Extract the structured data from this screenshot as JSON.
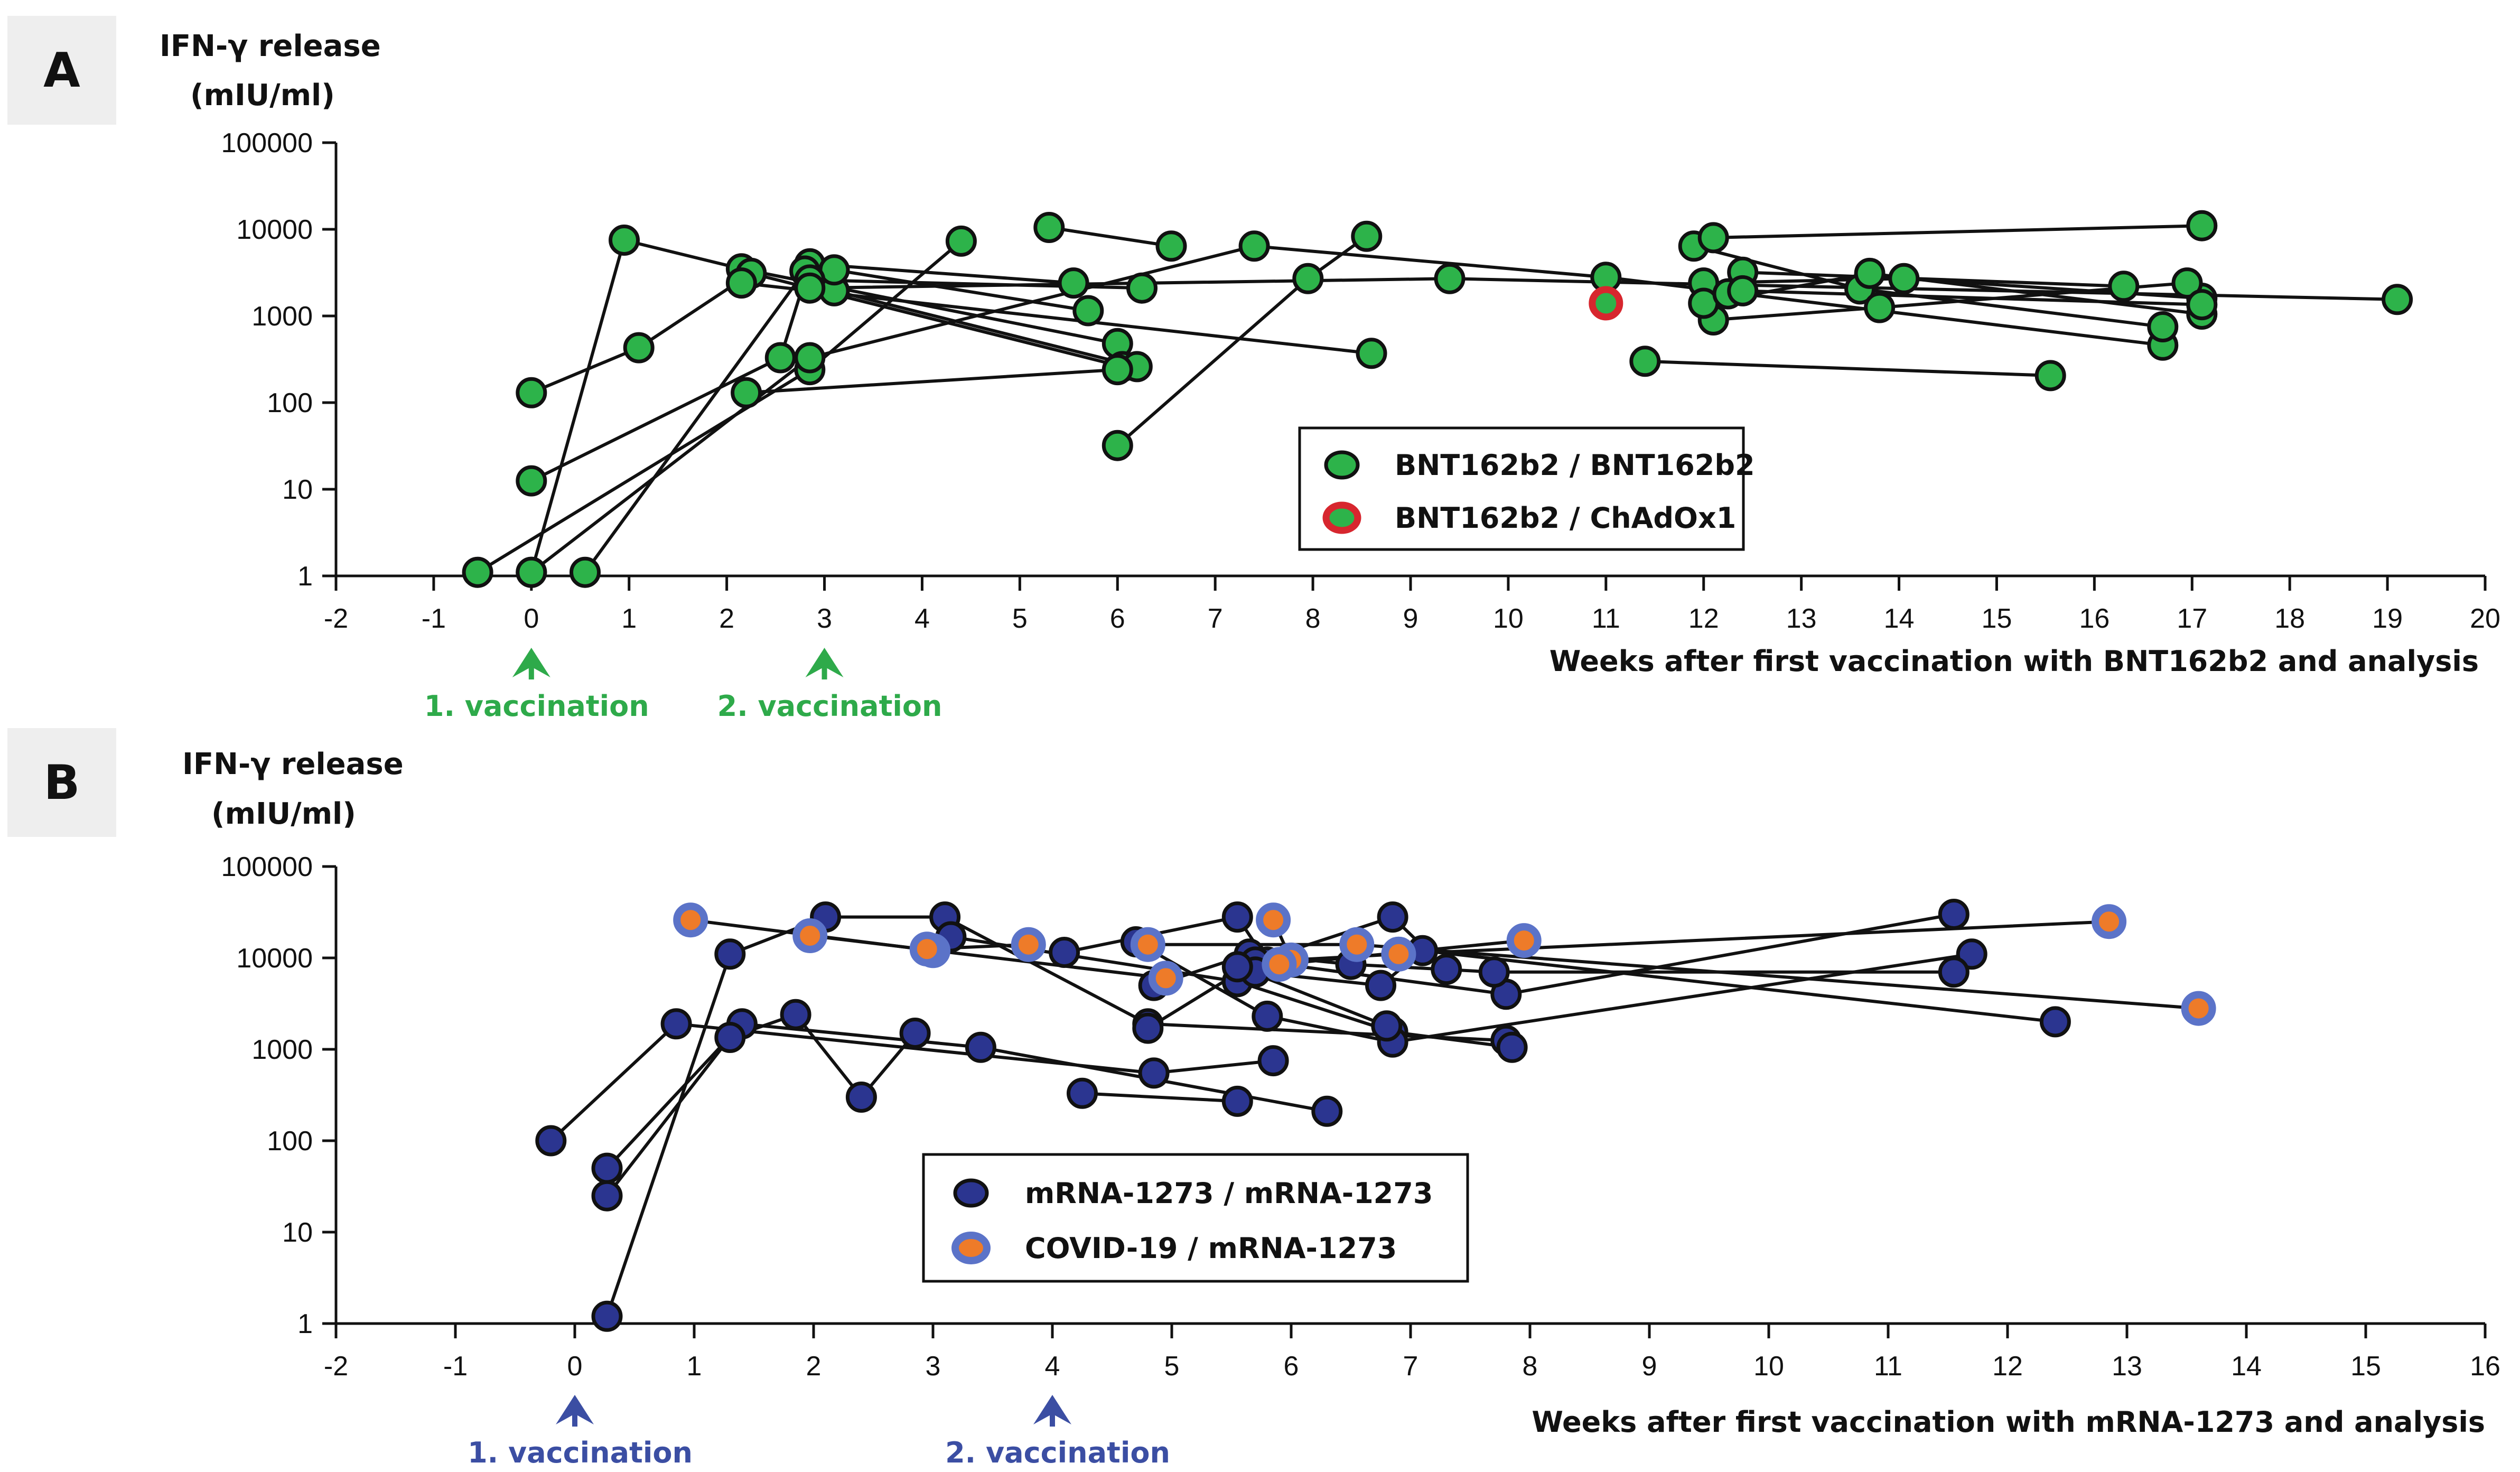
{
  "colors": {
    "green_fill": "#2db34a",
    "red_ring": "#d7262e",
    "navy_fill": "#2b3590",
    "orange_fill": "#ee7b29",
    "blue_ring": "#5b73c8",
    "green_text": "#2eaa4a",
    "blue_text": "#3b4ea3",
    "line": "#111111"
  },
  "chart_data": [
    {
      "panel": "A",
      "type": "line",
      "ylabel_line1": "IFN-γ release",
      "ylabel_line2": "(mIU/ml)",
      "xlabel": "Weeks after first vaccination with BNT162b2 and analysis",
      "yscale": "log",
      "ylim": [
        1,
        100000
      ],
      "yticks": [
        1,
        10,
        100,
        1000,
        10000,
        100000
      ],
      "ytick_labels": [
        "1",
        "10",
        "100",
        "1000",
        "10000",
        "100000"
      ],
      "xlim": [
        -2,
        20
      ],
      "xticks": [
        -2,
        -1,
        0,
        1,
        2,
        3,
        4,
        5,
        6,
        7,
        8,
        9,
        10,
        11,
        12,
        13,
        14,
        15,
        16,
        17,
        18,
        19,
        20
      ],
      "grid": false,
      "legend_position": "center-right",
      "vaccinations": [
        {
          "x": 0,
          "label": "1. vaccination"
        },
        {
          "x": 3,
          "label": "2. vaccination"
        }
      ],
      "series": [
        {
          "name": "BNT162b2 / BNT162b2",
          "marker": "green",
          "subjects": [
            [
              [
                0,
                1.1
              ],
              [
                0.95,
                7500
              ],
              [
                2.15,
                3500
              ],
              [
                6.0,
                480
              ]
            ],
            [
              [
                0,
                130
              ],
              [
                1.1,
                430
              ],
              [
                2.25,
                3100
              ],
              [
                6.05,
                260
              ]
            ],
            [
              [
                0,
                12.5
              ],
              [
                2.55,
                330
              ],
              [
                2.85,
                4000
              ],
              [
                5.55,
                2400
              ]
            ],
            [
              [
                -0.55,
                1.1
              ],
              [
                2.85,
                240
              ],
              [
                4.4,
                7300
              ]
            ],
            [
              [
                0.55,
                1.1
              ],
              [
                2.8,
                3300
              ],
              [
                3.1,
                1950
              ],
              [
                6.2,
                260
              ]
            ],
            [
              [
                0,
                1.1
              ],
              [
                2.85,
                330
              ],
              [
                7.4,
                6400
              ],
              [
                11.0,
                2800
              ],
              [
                16.7,
                460
              ]
            ],
            [
              [
                2.2,
                130
              ],
              [
                6.0,
                240
              ]
            ],
            [
              [
                2.15,
                2400
              ],
              [
                8.6,
                370
              ]
            ],
            [
              [
                3.1,
                3400
              ],
              [
                5.7,
                1150
              ]
            ],
            [
              [
                2.85,
                2600
              ],
              [
                6.25,
                2100
              ]
            ],
            [
              [
                2.85,
                2100
              ],
              [
                9.4,
                2700
              ],
              [
                19.1,
                1550
              ]
            ],
            [
              [
                5.3,
                10500
              ],
              [
                6.55,
                6400
              ]
            ],
            [
              [
                6.0,
                32
              ],
              [
                7.95,
                2700
              ],
              [
                8.55,
                8300
              ]
            ],
            [
              [
                11.4,
                300
              ],
              [
                15.55,
                205
              ]
            ],
            [
              [
                11.9,
                6400
              ],
              [
                13.6,
                2050
              ],
              [
                16.7,
                750
              ]
            ],
            [
              [
                12.1,
                8000
              ],
              [
                17.1,
                11000
              ]
            ],
            [
              [
                12.0,
                2400
              ],
              [
                14.05,
                2700
              ],
              [
                17.1,
                1600
              ]
            ],
            [
              [
                12.1,
                900
              ],
              [
                13.8,
                1250
              ],
              [
                16.95,
                2400
              ]
            ],
            [
              [
                12.0,
                1400
              ],
              [
                13.7,
                3100
              ],
              [
                17.1,
                1050
              ]
            ],
            [
              [
                12.25,
                1800
              ],
              [
                12.4,
                3200
              ],
              [
                16.3,
                2200
              ]
            ],
            [
              [
                12.4,
                1950
              ],
              [
                17.1,
                1350
              ]
            ]
          ]
        },
        {
          "name": "BNT162b2 / ChAdOx1",
          "marker": "green-red",
          "subjects": [
            [
              [
                11.0,
                1400
              ]
            ]
          ]
        }
      ]
    },
    {
      "panel": "B",
      "type": "line",
      "ylabel_line1": "IFN-γ release",
      "ylabel_line2": "(mIU/ml)",
      "xlabel": "Weeks after first vaccination with mRNA-1273 and analysis",
      "yscale": "log",
      "ylim": [
        1,
        100000
      ],
      "yticks": [
        1,
        10,
        100,
        1000,
        10000,
        100000
      ],
      "ytick_labels": [
        "1",
        "10",
        "100",
        "1000",
        "10000",
        "100000"
      ],
      "xlim": [
        -2,
        16
      ],
      "xticks": [
        -2,
        -1,
        0,
        1,
        2,
        3,
        4,
        5,
        6,
        7,
        8,
        9,
        10,
        11,
        12,
        13,
        14,
        15,
        16
      ],
      "grid": false,
      "legend_position": "center",
      "vaccinations": [
        {
          "x": 0,
          "label": "1. vaccination"
        },
        {
          "x": 4,
          "label": "2. vaccination"
        }
      ],
      "series": [
        {
          "name": "mRNA-1273 / mRNA-1273",
          "marker": "navy",
          "subjects": [
            [
              [
                -0.2,
                100
              ],
              [
                0.85,
                1900
              ],
              [
                4.85,
                550
              ],
              [
                5.85,
                750
              ]
            ],
            [
              [
                0.27,
                50
              ],
              [
                1.4,
                1900
              ],
              [
                3.4,
                1050
              ],
              [
                6.3,
                210
              ]
            ],
            [
              [
                0.27,
                25
              ],
              [
                1.3,
                1350
              ],
              [
                1.85,
                2400
              ],
              [
                2.4,
                300
              ],
              [
                2.85,
                1500
              ]
            ],
            [
              [
                0.27,
                1.2
              ],
              [
                1.3,
                11000
              ],
              [
                2.1,
                28000
              ],
              [
                3.1,
                28000
              ],
              [
                4.8,
                1900
              ],
              [
                7.8,
                1250
              ]
            ],
            [
              [
                3.15,
                17000
              ],
              [
                5.55,
                5500
              ],
              [
                6.85,
                1550
              ],
              [
                7.85,
                1050
              ]
            ],
            [
              [
                4.1,
                11500
              ],
              [
                5.55,
                28000
              ],
              [
                5.8,
                9000
              ],
              [
                7.8,
                4000
              ],
              [
                11.55,
                30000
              ]
            ],
            [
              [
                4.7,
                15000
              ],
              [
                5.8,
                2300
              ],
              [
                6.85,
                1200
              ],
              [
                11.7,
                11000
              ]
            ],
            [
              [
                4.85,
                5000
              ],
              [
                5.65,
                11000
              ],
              [
                6.5,
                8500
              ],
              [
                7.7,
                7000
              ],
              [
                11.55,
                7000
              ]
            ],
            [
              [
                4.25,
                330
              ],
              [
                5.55,
                270
              ]
            ],
            [
              [
                4.8,
                1700
              ],
              [
                5.7,
                9000
              ],
              [
                6.85,
                28000
              ],
              [
                7.3,
                7500
              ]
            ],
            [
              [
                5.7,
                7000
              ],
              [
                6.75,
                5000
              ],
              [
                7.1,
                12000
              ],
              [
                12.4,
                2000
              ]
            ],
            [
              [
                5.55,
                8000
              ],
              [
                6.8,
                1800
              ]
            ]
          ]
        },
        {
          "name": "COVID-19 / mRNA-1273",
          "marker": "orange-blue",
          "subjects": [
            [
              [
                0.97,
                26000
              ],
              [
                3.0,
                12000
              ]
            ],
            [
              [
                1.97,
                17500
              ],
              [
                4.95,
                6000
              ]
            ],
            [
              [
                2.95,
                12500
              ],
              [
                3.8,
                14000
              ]
            ],
            [
              [
                4.8,
                14000
              ],
              [
                6.55,
                14000
              ],
              [
                13.6,
                2800
              ]
            ],
            [
              [
                5.85,
                26000
              ],
              [
                6.0,
                9500
              ],
              [
                6.9,
                11000
              ],
              [
                12.85,
                25000
              ]
            ],
            [
              [
                5.9,
                8500
              ],
              [
                7.95,
                15500
              ]
            ]
          ]
        }
      ]
    }
  ]
}
